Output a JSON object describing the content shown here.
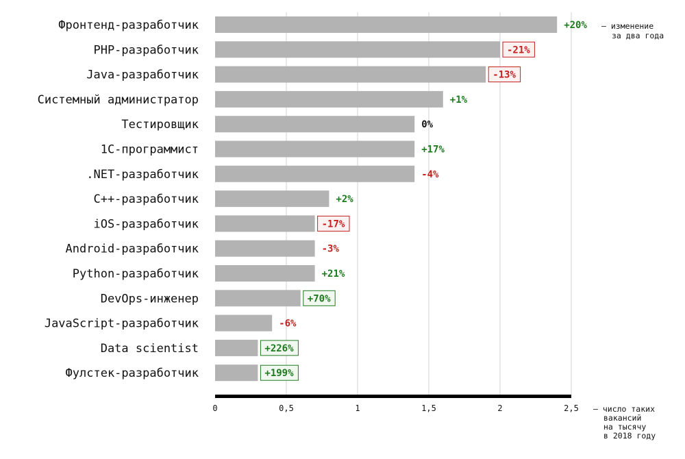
{
  "chart_data": {
    "type": "bar",
    "orientation": "horizontal",
    "categories": [
      "Фронтенд-разработчик",
      "PHP-разработчик",
      "Java-разработчик",
      "Системный администратор",
      "Тестировщик",
      "1C-программист",
      ".NET-разработчик",
      "C++-разработчик",
      "iOS-разработчик",
      "Android-разработчик",
      "Python-разработчик",
      "DevOps-инженер",
      "JavaScript-разработчик",
      "Data scientist",
      "Фулстек-разработчик"
    ],
    "values": [
      2.4,
      2.0,
      1.9,
      1.6,
      1.4,
      1.4,
      1.4,
      0.8,
      0.7,
      0.7,
      0.7,
      0.6,
      0.4,
      0.3,
      0.3
    ],
    "changes": [
      {
        "text": "+20%",
        "sign": "positive",
        "boxed": false
      },
      {
        "text": "-21%",
        "sign": "negative",
        "boxed": true
      },
      {
        "text": "-13%",
        "sign": "negative",
        "boxed": true
      },
      {
        "text": "+1%",
        "sign": "positive",
        "boxed": false
      },
      {
        "text": "0%",
        "sign": "neutral",
        "boxed": false
      },
      {
        "text": "+17%",
        "sign": "positive",
        "boxed": false
      },
      {
        "text": "-4%",
        "sign": "negative",
        "boxed": false
      },
      {
        "text": "+2%",
        "sign": "positive",
        "boxed": false
      },
      {
        "text": "-17%",
        "sign": "negative",
        "boxed": true
      },
      {
        "text": "-3%",
        "sign": "negative",
        "boxed": false
      },
      {
        "text": "+21%",
        "sign": "positive",
        "boxed": false
      },
      {
        "text": "+70%",
        "sign": "positive",
        "boxed": true
      },
      {
        "text": "-6%",
        "sign": "negative",
        "boxed": false
      },
      {
        "text": "+226%",
        "sign": "positive",
        "boxed": true
      },
      {
        "text": "+199%",
        "sign": "positive",
        "boxed": true
      }
    ],
    "xlim": [
      0,
      2.5
    ],
    "xticks": [
      0,
      0.5,
      1,
      1.5,
      2,
      2.5
    ],
    "xtick_labels": [
      "0",
      "0,5",
      "1",
      "1,5",
      "2",
      "2,5"
    ],
    "grid": true,
    "change_note": [
      "– изменение",
      "за два года"
    ],
    "xlabel_lines": [
      "– число таких",
      "вакансий",
      "на тысячу",
      "в 2018 году"
    ],
    "colors": {
      "bar": "#b3b3b3",
      "grid": "#d2d2d2",
      "axis": "#000000",
      "positive": "#1e7a1e",
      "negative": "#c41e1e",
      "neutral": "#111111",
      "positive_bg": "#f1f8ef",
      "negative_bg": "#fcf1f1"
    }
  }
}
